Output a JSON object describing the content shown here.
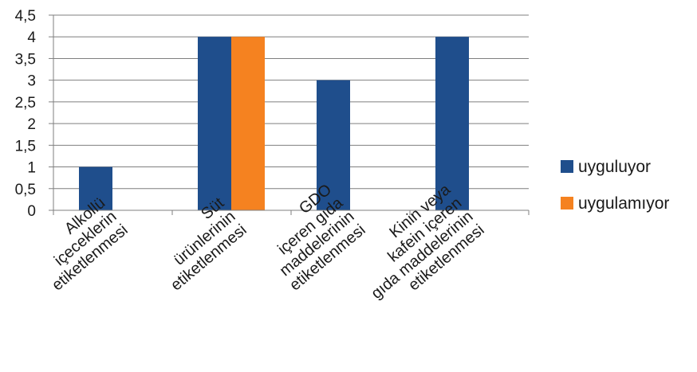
{
  "chart_data": {
    "type": "bar",
    "title": "",
    "xlabel": "",
    "ylabel": "",
    "ylim": [
      0,
      4.5
    ],
    "y_ticks": [
      "0",
      "0,5",
      "1",
      "1,5",
      "2",
      "2,5",
      "3",
      "3,5",
      "4",
      "4,5"
    ],
    "grid": true,
    "legend_position": "right",
    "categories": [
      [
        "Alkollü",
        "içeceklerin",
        "etiketlenmesi"
      ],
      [
        "Süt",
        "ürünlerinin",
        "etiketlenmesi"
      ],
      [
        "GDO",
        "içeren gıda",
        "maddelerinin",
        "etiketlenmesi"
      ],
      [
        "Kinin veya",
        "kafein içeren",
        "gıda maddelerinin",
        "etiketlenmesi"
      ]
    ],
    "series": [
      {
        "name": "uyguluyor",
        "color": "#1F4E8C",
        "values": [
          1,
          4,
          3,
          4
        ]
      },
      {
        "name": "uygulamıyor",
        "color": "#F58220",
        "values": [
          0,
          4,
          0,
          0
        ]
      }
    ]
  }
}
